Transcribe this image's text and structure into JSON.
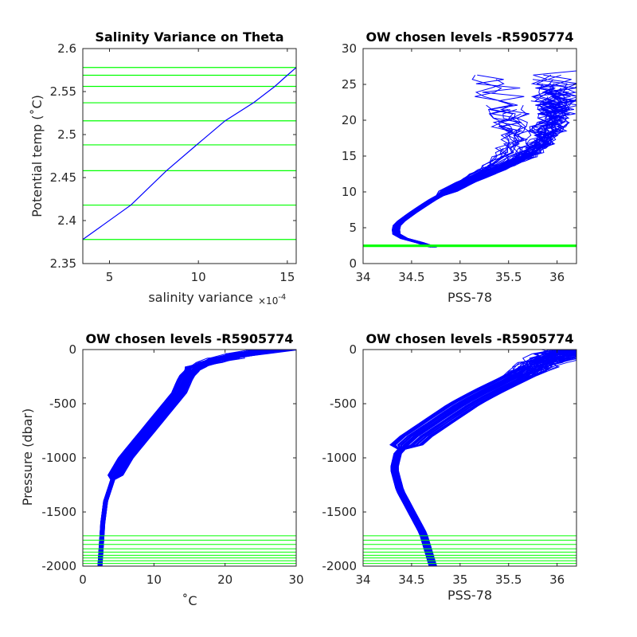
{
  "figure": {
    "background": "#ffffff",
    "profile_color": "#0000ff",
    "level_color": "#00ff00"
  },
  "chart_data": [
    {
      "type": "line",
      "title": "Salinity Variance on Theta",
      "xlabel": "salinity variance",
      "x_exponent_label": "×10",
      "x_exponent_power": "-4",
      "ylabel": "Potential temp (˚C)",
      "xlim": [
        3.5,
        15.5
      ],
      "ylim": [
        2.35,
        2.6
      ],
      "xticks": [
        5,
        10,
        15
      ],
      "yticks": [
        2.35,
        2.4,
        2.45,
        2.5,
        2.55,
        2.6
      ],
      "xtick_labels": [
        "5",
        "10",
        "15"
      ],
      "ytick_labels": [
        "2.35",
        "2.4",
        "2.45",
        "2.5",
        "2.55",
        "2.6"
      ],
      "series": [
        {
          "values": [
            [
              3.5,
              2.378
            ],
            [
              6.2,
              2.418
            ],
            [
              8.2,
              2.458
            ],
            [
              9.9,
              2.488
            ],
            [
              11.5,
              2.516
            ],
            [
              13.1,
              2.537
            ],
            [
              14.3,
              2.556
            ],
            [
              15.0,
              2.569
            ],
            [
              15.5,
              2.578
            ]
          ]
        }
      ],
      "hlines": [
        2.378,
        2.418,
        2.458,
        2.488,
        2.516,
        2.537,
        2.556,
        2.569,
        2.578
      ]
    },
    {
      "type": "line",
      "title": "OW chosen levels -R5905774",
      "xlabel": "PSS-78",
      "ylabel": "",
      "xlim": [
        34,
        36.2
      ],
      "ylim": [
        0,
        30
      ],
      "xticks": [
        34,
        34.5,
        35,
        35.5,
        36
      ],
      "yticks": [
        0,
        5,
        10,
        15,
        20,
        25,
        30
      ],
      "xtick_labels": [
        "34",
        "34.5",
        "35",
        "35.5",
        "36"
      ],
      "ytick_labels": [
        "0",
        "5",
        "10",
        "15",
        "20",
        "25",
        "30"
      ],
      "profile_envelope": [
        [
          34.72,
          2.3
        ],
        [
          34.62,
          2.8
        ],
        [
          34.45,
          3.3
        ],
        [
          34.33,
          4.2
        ],
        [
          34.35,
          5.5
        ],
        [
          34.5,
          7.0
        ],
        [
          34.7,
          8.8
        ],
        [
          34.9,
          10.3
        ],
        [
          35.1,
          11.6
        ],
        [
          35.4,
          13.1
        ],
        [
          35.7,
          14.8
        ],
        [
          35.95,
          17.0
        ],
        [
          36.1,
          20.0
        ],
        [
          36.2,
          23.0
        ]
      ],
      "surface_cluster": [
        [
          34.5,
          13.0
        ],
        [
          35.0,
          15.0
        ],
        [
          35.6,
          26.0
        ],
        [
          36.2,
          23.0
        ]
      ],
      "hlines": [
        2.378,
        2.418,
        2.458,
        2.488,
        2.516,
        2.537,
        2.556,
        2.569,
        2.578
      ]
    },
    {
      "type": "line",
      "title": "OW chosen levels -R5905774",
      "xlabel": "˚C",
      "ylabel": "Pressure (dbar)",
      "xlim": [
        0,
        30
      ],
      "ylim": [
        -2000,
        0
      ],
      "xticks": [
        0,
        10,
        20,
        30
      ],
      "yticks": [
        -2000,
        -1500,
        -1000,
        -500,
        0
      ],
      "xtick_labels": [
        "0",
        "10",
        "20",
        "30"
      ],
      "ytick_labels": [
        "-2000",
        "-1500",
        "-1000",
        "-500",
        "0"
      ],
      "profile_envelope": [
        [
          2.4,
          -2000
        ],
        [
          2.6,
          -1800
        ],
        [
          2.8,
          -1600
        ],
        [
          3.2,
          -1400
        ],
        [
          4.2,
          -1200
        ],
        [
          6.0,
          -1000
        ],
        [
          8.5,
          -800
        ],
        [
          11.0,
          -600
        ],
        [
          13.5,
          -400
        ],
        [
          14.5,
          -250
        ],
        [
          16.0,
          -150
        ],
        [
          22.0,
          -50
        ],
        [
          27.0,
          0
        ]
      ],
      "hlines": [
        -1720,
        -1760,
        -1800,
        -1840,
        -1870,
        -1900,
        -1925,
        -1950,
        -1975
      ]
    },
    {
      "type": "line",
      "title": "OW chosen levels -R5905774",
      "xlabel": "PSS-78",
      "ylabel": "",
      "xlim": [
        34,
        36.2
      ],
      "ylim": [
        -2000,
        0
      ],
      "xticks": [
        34,
        34.5,
        35,
        35.5,
        36
      ],
      "yticks": [
        -2000,
        -1500,
        -1000,
        -500,
        0
      ],
      "xtick_labels": [
        "34",
        "34.5",
        "35",
        "35.5",
        "36"
      ],
      "ytick_labels": [
        "-2000",
        "-1500",
        "-1000",
        "-500",
        "0"
      ],
      "profile_envelope": [
        [
          34.72,
          -2000
        ],
        [
          34.62,
          -1700
        ],
        [
          34.5,
          -1500
        ],
        [
          34.38,
          -1300
        ],
        [
          34.32,
          -1100
        ],
        [
          34.36,
          -950
        ],
        [
          34.55,
          -800
        ],
        [
          34.8,
          -650
        ],
        [
          35.05,
          -500
        ],
        [
          35.3,
          -380
        ],
        [
          35.6,
          -250
        ],
        [
          35.9,
          -100
        ],
        [
          36.2,
          0
        ]
      ],
      "hlines": [
        -1720,
        -1760,
        -1800,
        -1840,
        -1870,
        -1900,
        -1925,
        -1950,
        -1975
      ]
    }
  ]
}
